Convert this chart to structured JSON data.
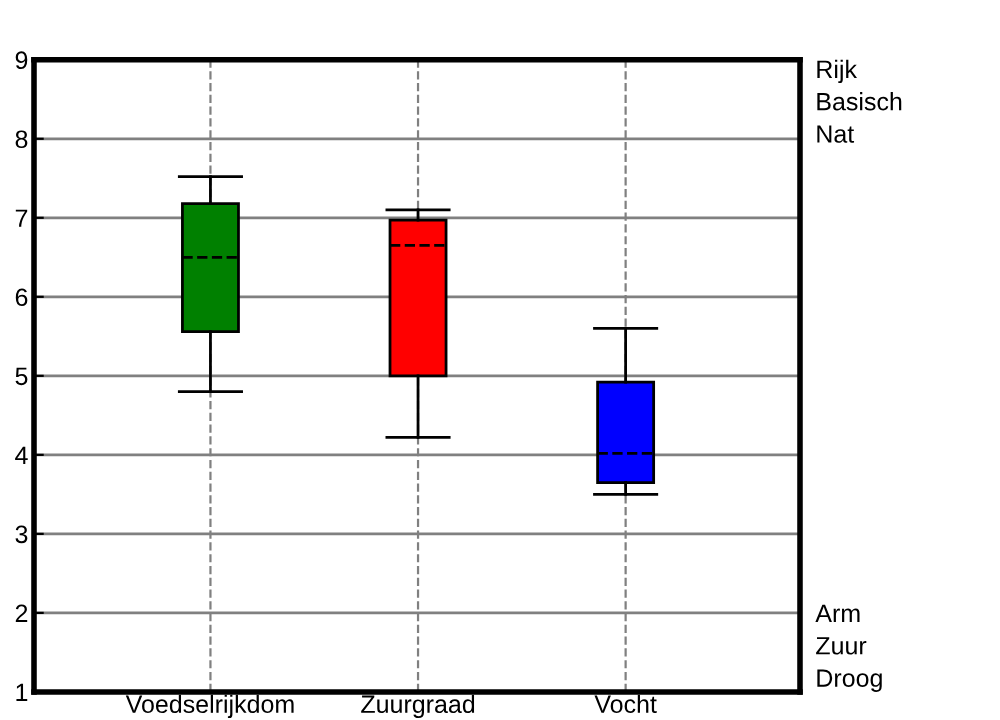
{
  "chart_data": {
    "type": "box",
    "categories": [
      "Voedselrijkdom",
      "Zuurgraad",
      "Vocht"
    ],
    "boxes": [
      {
        "low": 4.8,
        "q1": 5.56,
        "median": 6.5,
        "q3": 7.18,
        "high": 7.52
      },
      {
        "low": 4.22,
        "q1": 5.0,
        "median": 6.65,
        "q3": 6.97,
        "high": 7.1
      },
      {
        "low": 3.5,
        "q1": 3.65,
        "median": 4.02,
        "q3": 4.92,
        "high": 5.6
      }
    ],
    "colors": [
      "#008000",
      "#ff0000",
      "#0000ff"
    ],
    "ylim": [
      1,
      9
    ],
    "yticks": [
      1,
      2,
      3,
      4,
      5,
      6,
      7,
      8,
      9
    ],
    "annotations": [
      "Rijk\nBasisch\nNat",
      "Arm\nZuur\nDroog"
    ],
    "grid": true,
    "line_style": "dashed"
  }
}
